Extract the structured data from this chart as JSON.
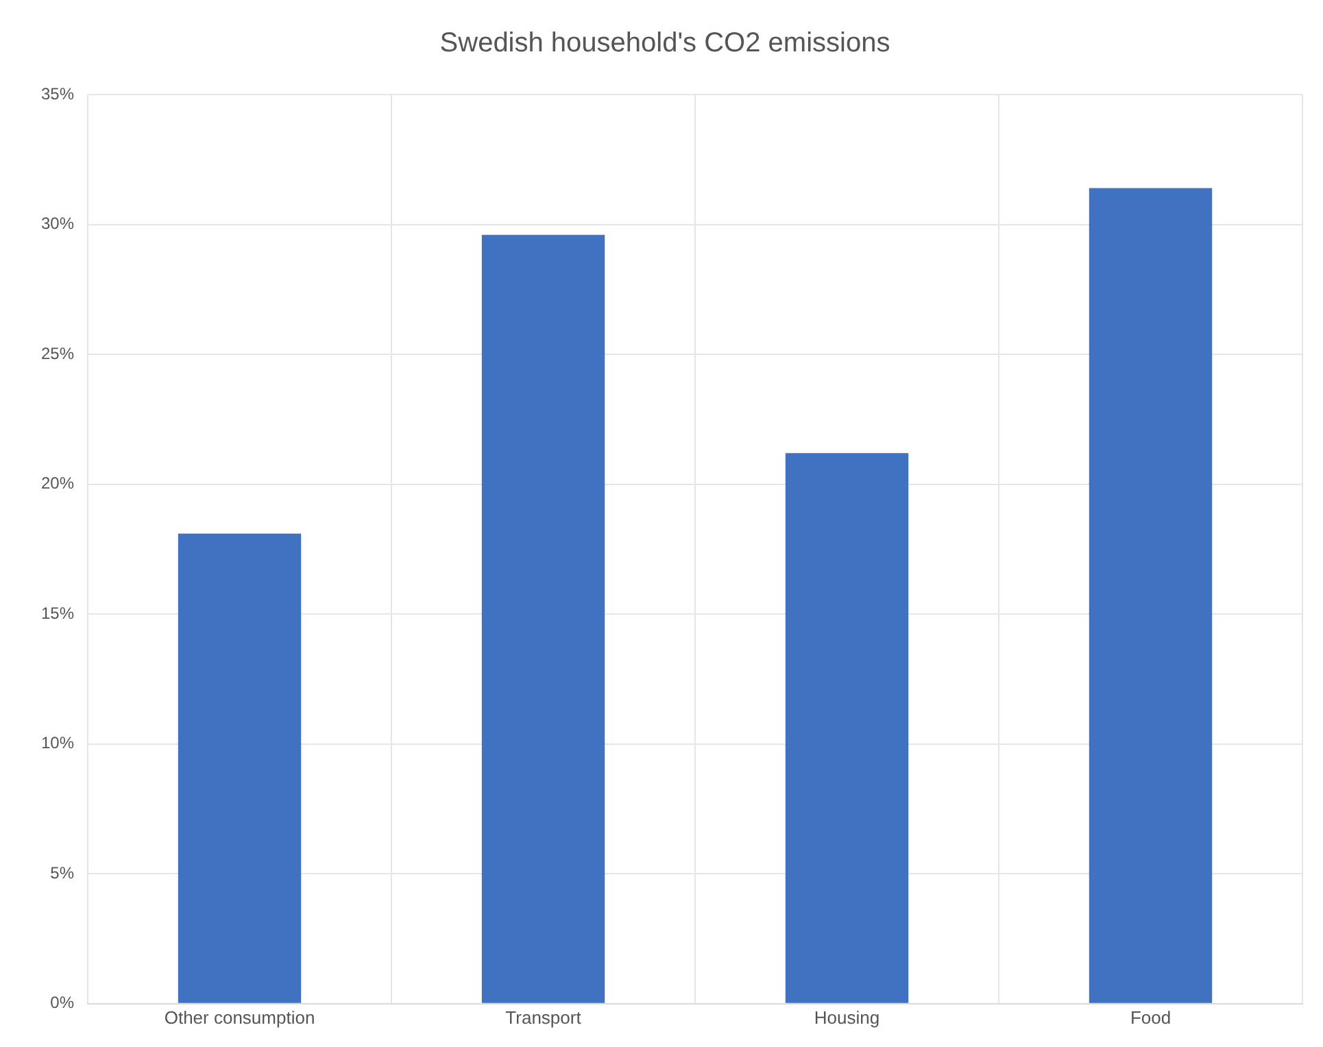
{
  "chart_data": {
    "type": "bar",
    "title": "Swedish household's CO2 emissions",
    "categories": [
      "Other consumption",
      "Transport",
      "Housing",
      "Food"
    ],
    "values": [
      18.1,
      29.6,
      21.2,
      31.4
    ],
    "color": "#3f72c0",
    "ylim": [
      0,
      35
    ],
    "yticks": [
      {
        "value": 0,
        "label": "0%"
      },
      {
        "value": 5,
        "label": "5%"
      },
      {
        "value": 10,
        "label": "10%"
      },
      {
        "value": 15,
        "label": "15%"
      },
      {
        "value": 20,
        "label": "20%"
      },
      {
        "value": 25,
        "label": "25%"
      },
      {
        "value": 30,
        "label": "30%"
      },
      {
        "value": 35,
        "label": "35%"
      }
    ],
    "grid": true,
    "legend": false
  }
}
